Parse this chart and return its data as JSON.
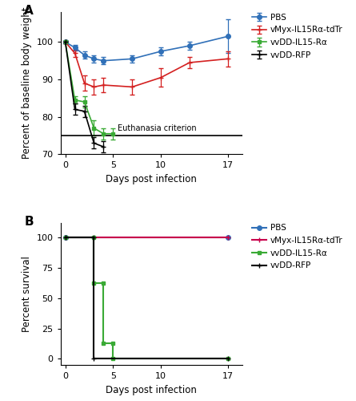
{
  "panel_A": {
    "title": "A",
    "xlabel": "Days post infection",
    "ylabel": "Percent of baseline body weight",
    "ylim": [
      70,
      108
    ],
    "yticks": [
      70,
      80,
      90,
      100
    ],
    "xlim": [
      -0.5,
      18.5
    ],
    "xticks": [
      0,
      5,
      10,
      17
    ],
    "euthanasia_y": 75,
    "euthanasia_label": "Euthanasia criterion",
    "series": {
      "PBS": {
        "color": "#3070b8",
        "x": [
          0,
          1,
          2,
          3,
          4,
          7,
          10,
          13,
          17
        ],
        "y": [
          100,
          98.5,
          96.5,
          95.5,
          95.0,
          95.5,
          97.5,
          99.0,
          101.5
        ],
        "yerr": [
          0.3,
          0.8,
          1.0,
          1.0,
          1.0,
          1.0,
          1.0,
          1.0,
          4.5
        ],
        "marker": "o",
        "ms": 4
      },
      "vMyx-IL15Ra-tdTr": {
        "color": "#d42020",
        "x": [
          0,
          1,
          2,
          3,
          4,
          7,
          10,
          13,
          17
        ],
        "y": [
          100,
          97.0,
          89.0,
          88.0,
          88.5,
          88.0,
          90.5,
          94.5,
          95.5
        ],
        "yerr": [
          0.3,
          1.0,
          2.0,
          2.0,
          2.0,
          2.0,
          2.5,
          1.5,
          2.0
        ],
        "marker": "+",
        "ms": 5
      },
      "vvDD-IL15-Ra": {
        "color": "#3aaa35",
        "x": [
          0,
          1,
          2,
          3,
          4,
          5
        ],
        "y": [
          100,
          84.5,
          84.0,
          77.0,
          75.5,
          75.5
        ],
        "yerr": [
          0.3,
          1.0,
          1.5,
          2.0,
          1.5,
          1.5
        ],
        "marker": "s",
        "ms": 3
      },
      "vvDD-RFP": {
        "color": "#000000",
        "x": [
          0,
          1,
          2,
          3,
          4
        ],
        "y": [
          100,
          82.0,
          81.5,
          73.0,
          72.0
        ],
        "yerr": [
          0.3,
          1.5,
          1.5,
          1.5,
          1.5
        ],
        "marker": "+",
        "ms": 5
      }
    },
    "legend_order": [
      "PBS",
      "vMyx-IL15Ra-tdTr",
      "vvDD-IL15-Ra",
      "vvDD-RFP"
    ]
  },
  "panel_B": {
    "title": "B",
    "xlabel": "Days post infection",
    "ylabel": "Percent survival",
    "ylim": [
      -5,
      112
    ],
    "yticks": [
      0,
      25,
      50,
      75,
      100
    ],
    "xlim": [
      -0.5,
      18.5
    ],
    "xticks": [
      0,
      5,
      10,
      17
    ],
    "series": {
      "PBS": {
        "color": "#3070b8",
        "x": [
          0,
          17
        ],
        "y": [
          100,
          100
        ],
        "marker": "o",
        "ms": 4
      },
      "vMyx-IL15Ra-tdTr": {
        "color": "#c8004b",
        "x": [
          0,
          17
        ],
        "y": [
          100,
          100
        ],
        "marker": "+",
        "ms": 5
      },
      "vvDD-IL15-Ra": {
        "color": "#3aaa35",
        "x": [
          0,
          3,
          3,
          4,
          4,
          5,
          5,
          17
        ],
        "y": [
          100,
          100,
          62.5,
          62.5,
          12.5,
          12.5,
          0,
          0
        ],
        "marker": "s",
        "ms": 3
      },
      "vvDD-RFP": {
        "color": "#000000",
        "x": [
          0,
          3,
          3,
          17
        ],
        "y": [
          100,
          100,
          0,
          0
        ],
        "marker": "+",
        "ms": 5
      }
    },
    "legend_order": [
      "PBS",
      "vMyx-IL15Ra-tdTr",
      "vvDD-IL15-Ra",
      "vvDD-RFP"
    ]
  },
  "legend_labels_A": [
    "PBS",
    "vMyx-IL15Rα-tdTr",
    "vvDD-IL15-Rα",
    "vvDD-RFP"
  ],
  "legend_labels_B": [
    "PBS",
    "vMyx-IL15Rα-tdTr",
    "vvDD-IL15-Rα",
    "vvDD-RFP"
  ]
}
